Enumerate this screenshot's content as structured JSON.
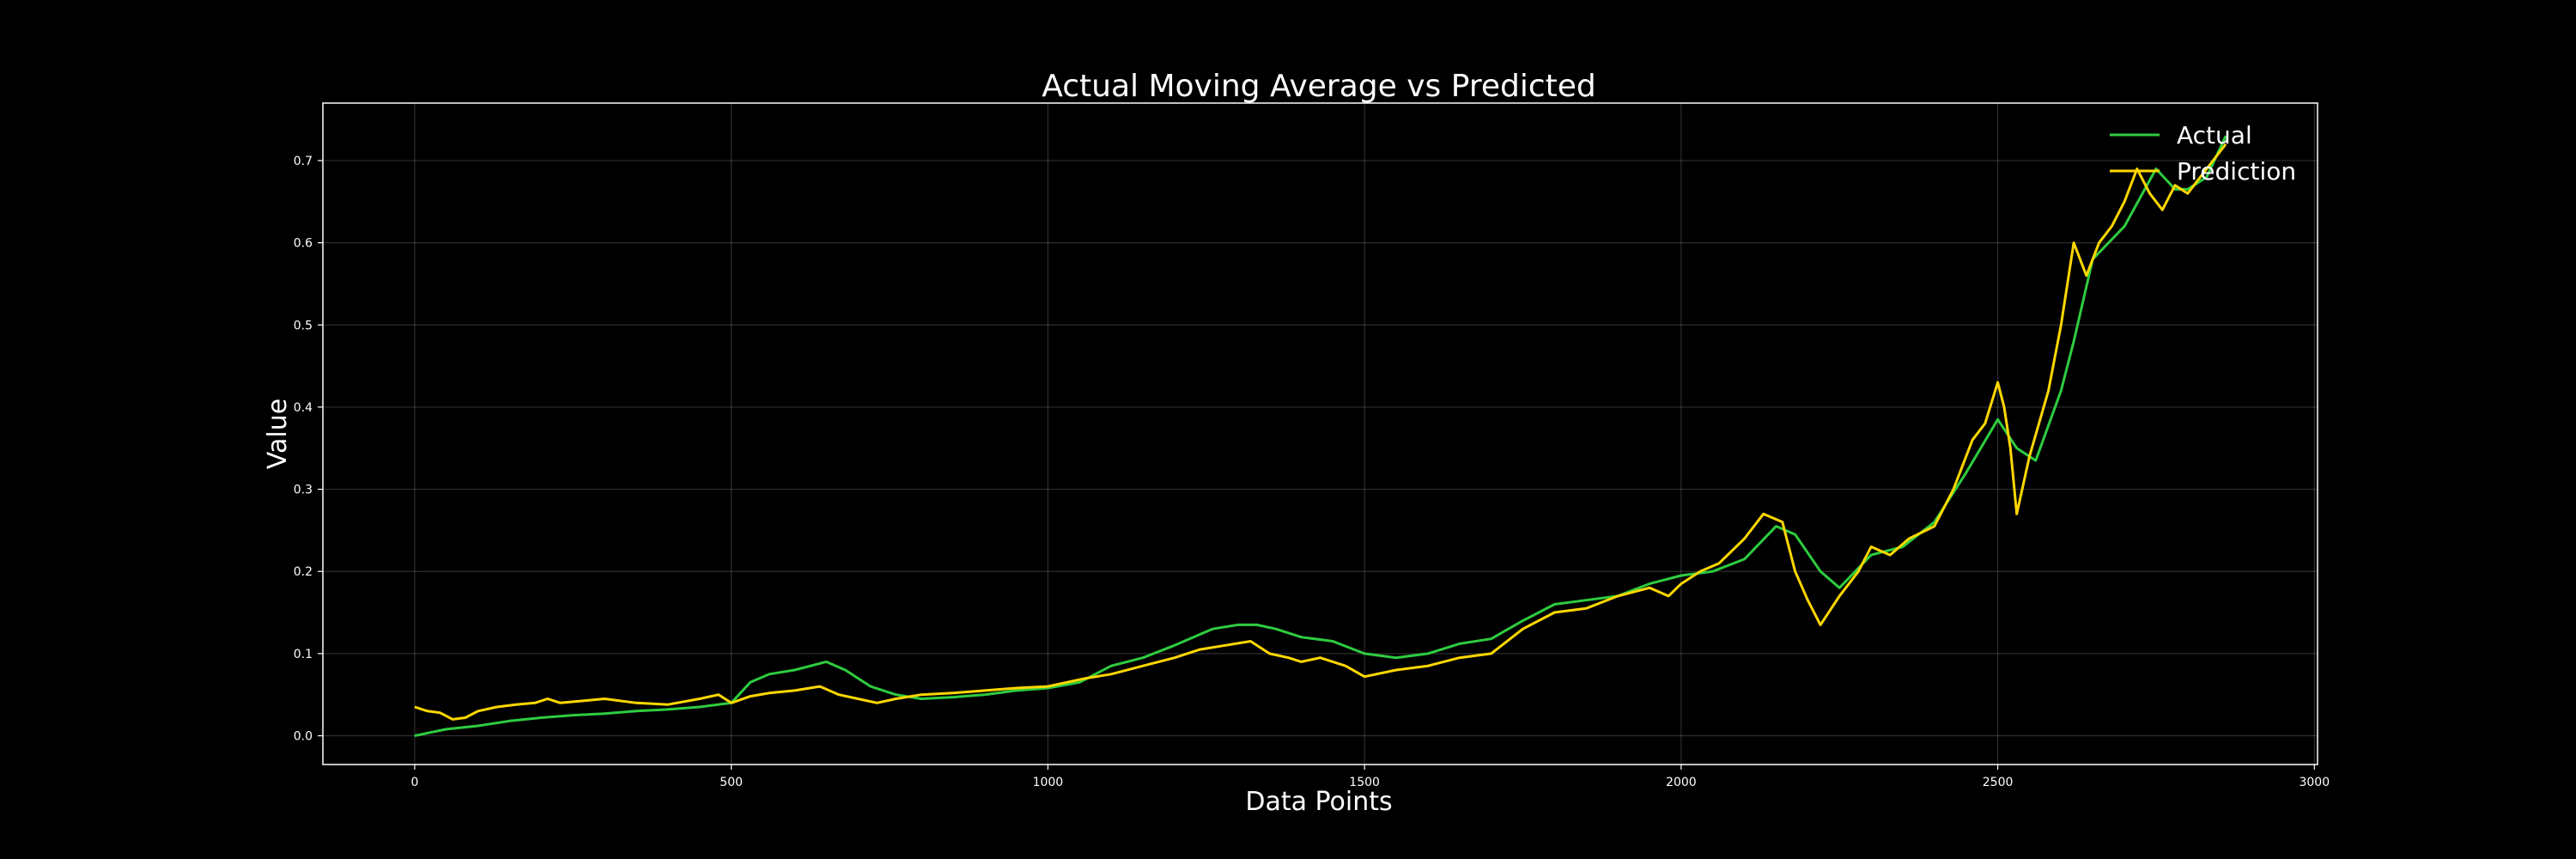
{
  "chart_data": {
    "type": "line",
    "title": "Actual Moving Average vs Predicted",
    "xlabel": "Data Points",
    "ylabel": "Value",
    "xlim": [
      -145,
      3005
    ],
    "ylim": [
      -0.035,
      0.77
    ],
    "x_ticks": [
      0,
      500,
      1000,
      1500,
      2000,
      2500,
      3000
    ],
    "y_ticks": [
      0.0,
      0.1,
      0.2,
      0.3,
      0.4,
      0.5,
      0.6,
      0.7
    ],
    "grid": true,
    "legend_position": "top-right",
    "series": [
      {
        "name": "Actual",
        "color": "#2ecc40",
        "x": [
          0,
          50,
          100,
          150,
          200,
          250,
          300,
          350,
          400,
          450,
          500,
          530,
          560,
          600,
          650,
          680,
          720,
          760,
          800,
          850,
          900,
          950,
          1000,
          1050,
          1100,
          1150,
          1200,
          1230,
          1260,
          1300,
          1330,
          1360,
          1400,
          1450,
          1500,
          1550,
          1600,
          1650,
          1700,
          1750,
          1800,
          1850,
          1900,
          1950,
          2000,
          2050,
          2100,
          2150,
          2180,
          2220,
          2250,
          2300,
          2350,
          2400,
          2450,
          2500,
          2530,
          2560,
          2600,
          2620,
          2650,
          2700,
          2750,
          2780,
          2800,
          2830,
          2860
        ],
        "y": [
          0.0,
          0.008,
          0.012,
          0.018,
          0.022,
          0.025,
          0.027,
          0.03,
          0.032,
          0.035,
          0.04,
          0.065,
          0.075,
          0.08,
          0.09,
          0.08,
          0.06,
          0.05,
          0.045,
          0.047,
          0.05,
          0.055,
          0.058,
          0.065,
          0.085,
          0.095,
          0.11,
          0.12,
          0.13,
          0.135,
          0.135,
          0.13,
          0.12,
          0.115,
          0.1,
          0.095,
          0.1,
          0.112,
          0.118,
          0.14,
          0.16,
          0.165,
          0.17,
          0.185,
          0.195,
          0.2,
          0.215,
          0.255,
          0.245,
          0.2,
          0.18,
          0.22,
          0.23,
          0.26,
          0.32,
          0.385,
          0.35,
          0.335,
          0.42,
          0.48,
          0.58,
          0.62,
          0.69,
          0.665,
          0.665,
          0.68,
          0.73
        ]
      },
      {
        "name": "Prediction",
        "color": "#ffd700",
        "x": [
          0,
          20,
          40,
          60,
          80,
          100,
          130,
          160,
          190,
          210,
          230,
          260,
          300,
          350,
          400,
          450,
          480,
          500,
          530,
          560,
          600,
          640,
          670,
          700,
          730,
          760,
          800,
          850,
          900,
          950,
          1000,
          1030,
          1060,
          1100,
          1150,
          1200,
          1240,
          1280,
          1320,
          1350,
          1380,
          1400,
          1430,
          1470,
          1500,
          1550,
          1600,
          1650,
          1700,
          1750,
          1800,
          1850,
          1900,
          1950,
          1980,
          2000,
          2030,
          2060,
          2100,
          2130,
          2160,
          2180,
          2200,
          2220,
          2250,
          2280,
          2300,
          2330,
          2360,
          2400,
          2430,
          2460,
          2480,
          2500,
          2510,
          2520,
          2530,
          2550,
          2580,
          2600,
          2620,
          2640,
          2660,
          2680,
          2700,
          2720,
          2740,
          2760,
          2780,
          2800,
          2830,
          2860
        ],
        "y": [
          0.035,
          0.03,
          0.028,
          0.02,
          0.022,
          0.03,
          0.035,
          0.038,
          0.04,
          0.045,
          0.04,
          0.042,
          0.045,
          0.04,
          0.038,
          0.045,
          0.05,
          0.04,
          0.048,
          0.052,
          0.055,
          0.06,
          0.05,
          0.045,
          0.04,
          0.045,
          0.05,
          0.052,
          0.055,
          0.058,
          0.06,
          0.065,
          0.07,
          0.075,
          0.085,
          0.095,
          0.105,
          0.11,
          0.115,
          0.1,
          0.095,
          0.09,
          0.095,
          0.085,
          0.072,
          0.08,
          0.085,
          0.095,
          0.1,
          0.13,
          0.15,
          0.155,
          0.17,
          0.18,
          0.17,
          0.185,
          0.2,
          0.21,
          0.24,
          0.27,
          0.26,
          0.2,
          0.165,
          0.135,
          0.17,
          0.2,
          0.23,
          0.22,
          0.24,
          0.255,
          0.3,
          0.36,
          0.38,
          0.43,
          0.4,
          0.35,
          0.27,
          0.34,
          0.42,
          0.5,
          0.6,
          0.56,
          0.6,
          0.62,
          0.65,
          0.69,
          0.66,
          0.64,
          0.67,
          0.66,
          0.69,
          0.72
        ]
      }
    ]
  }
}
